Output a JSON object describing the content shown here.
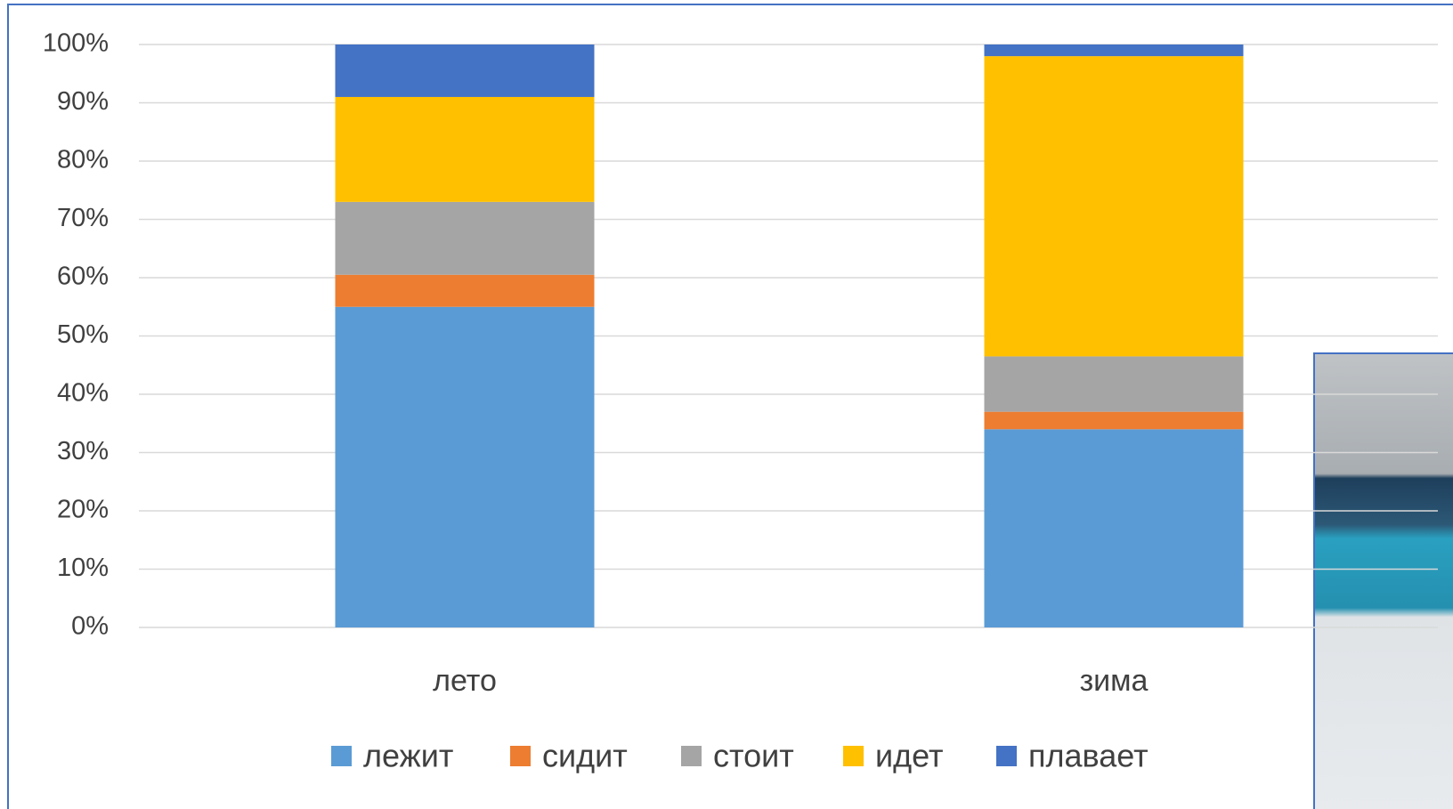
{
  "chart_data": {
    "type": "stacked_bar",
    "categories": [
      "лето",
      "зима"
    ],
    "series": [
      {
        "name": "лежит",
        "color": "#5b9bd5",
        "values": [
          55,
          34
        ]
      },
      {
        "name": "сидит",
        "color": "#ed7d31",
        "values": [
          5.5,
          3
        ]
      },
      {
        "name": "стоит",
        "color": "#a5a5a5",
        "values": [
          12.5,
          9.5
        ]
      },
      {
        "name": "идет",
        "color": "#ffc000",
        "values": [
          18,
          51.5
        ]
      },
      {
        "name": "плавает",
        "color": "#4472c4",
        "values": [
          9,
          2
        ]
      }
    ],
    "ylim": [
      0,
      100
    ],
    "yticks": [
      {
        "value": 0,
        "label": "0%"
      },
      {
        "value": 10,
        "label": "10%"
      },
      {
        "value": 20,
        "label": "20%"
      },
      {
        "value": 30,
        "label": "30%"
      },
      {
        "value": 40,
        "label": "40%"
      },
      {
        "value": 50,
        "label": "50%"
      },
      {
        "value": 60,
        "label": "60%"
      },
      {
        "value": 70,
        "label": "70%"
      },
      {
        "value": 80,
        "label": "80%"
      },
      {
        "value": 90,
        "label": "90%"
      },
      {
        "value": 100,
        "label": "100%"
      }
    ],
    "grid": true,
    "legend": "bottom"
  }
}
